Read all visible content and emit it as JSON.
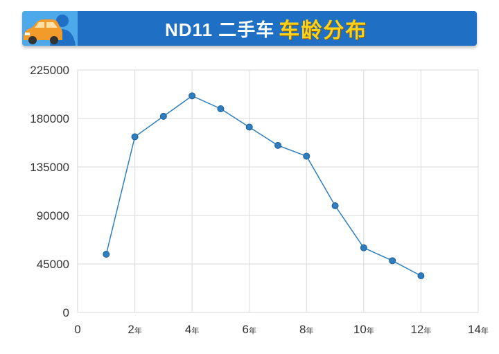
{
  "title": {
    "main": "ND11 二手车",
    "accent": "车龄分布"
  },
  "icons": {
    "banner": "car-person-icon"
  },
  "colors": {
    "banner": "#1f6fc4",
    "banner_left": "#4ea9ea",
    "accent": "#ffd21a",
    "series": "#2e7ebf",
    "grid": "#d9d9d9"
  },
  "chart_data": {
    "type": "line",
    "x": [
      1,
      2,
      3,
      4,
      5,
      6,
      7,
      8,
      9,
      10,
      11,
      12
    ],
    "series": [
      {
        "values": [
          54000,
          163000,
          182000,
          201000,
          189000,
          172000,
          155000,
          145000,
          99000,
          60000,
          48000,
          34000
        ]
      }
    ],
    "xlim": [
      0,
      14
    ],
    "ylim": [
      0,
      225000
    ],
    "yticks": [
      "0",
      "45000",
      "90000",
      "135000",
      "180000",
      "225000"
    ],
    "xticks": [
      {
        "value": 0,
        "label": "0",
        "unit": ""
      },
      {
        "value": 2,
        "label": "2",
        "unit": "年"
      },
      {
        "value": 4,
        "label": "4",
        "unit": "年"
      },
      {
        "value": 6,
        "label": "6",
        "unit": "年"
      },
      {
        "value": 8,
        "label": "8",
        "unit": "年"
      },
      {
        "value": 10,
        "label": "10",
        "unit": "年"
      },
      {
        "value": 12,
        "label": "12",
        "unit": "年"
      },
      {
        "value": 14,
        "label": "14",
        "unit": "年"
      }
    ],
    "grid": true
  }
}
